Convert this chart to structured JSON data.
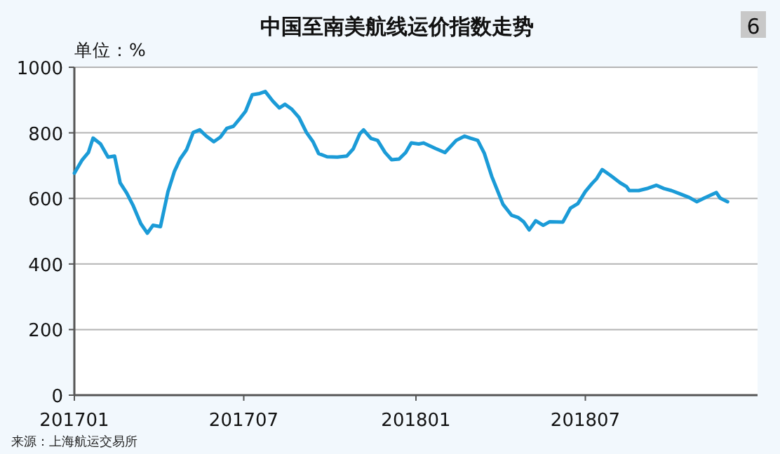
{
  "chart_data": {
    "type": "line",
    "title": "中国至南美航线运价指数走势",
    "ylabel": "单位：%",
    "annotations": [
      "6",
      "来源：上海航运交易所"
    ],
    "x": [
      "2017-01-01",
      "2017-01-09",
      "2017-01-16",
      "2017-01-21",
      "2017-01-29",
      "2017-02-06",
      "2017-02-13",
      "2017-02-19",
      "2017-02-26",
      "2017-03-05",
      "2017-03-13",
      "2017-03-20",
      "2017-03-26",
      "2017-04-03",
      "2017-04-11",
      "2017-04-18",
      "2017-04-24",
      "2017-05-01",
      "2017-05-08",
      "2017-05-15",
      "2017-05-22",
      "2017-05-30",
      "2017-06-06",
      "2017-06-13",
      "2017-06-20",
      "2017-06-27",
      "2017-07-03",
      "2017-07-10",
      "2017-07-18",
      "2017-07-24",
      "2017-08-01",
      "2017-08-08",
      "2017-08-14",
      "2017-08-21",
      "2017-08-29",
      "2017-09-06",
      "2017-09-13",
      "2017-09-19",
      "2017-09-28",
      "2017-10-09",
      "2017-10-19",
      "2017-10-26",
      "2017-11-02",
      "2017-11-06",
      "2017-11-14",
      "2017-11-21",
      "2017-11-29",
      "2017-12-06",
      "2017-12-14",
      "2017-12-21",
      "2017-12-27",
      "2018-01-04",
      "2018-01-09",
      "2018-01-22",
      "2018-02-01",
      "2018-02-13",
      "2018-02-22",
      "2018-02-28",
      "2018-03-08",
      "2018-03-15",
      "2018-03-23",
      "2018-04-04",
      "2018-04-13",
      "2018-04-20",
      "2018-04-26",
      "2018-05-02",
      "2018-05-09",
      "2018-05-17",
      "2018-05-24",
      "2018-06-07",
      "2018-06-15",
      "2018-06-23",
      "2018-07-01",
      "2018-07-08",
      "2018-07-13",
      "2018-07-19",
      "2018-07-28",
      "2018-08-07",
      "2018-08-14",
      "2018-08-17",
      "2018-08-27",
      "2018-09-06",
      "2018-09-15",
      "2018-09-23",
      "2018-10-01",
      "2018-10-11",
      "2018-10-20",
      "2018-10-28",
      "2018-11-05",
      "2018-11-18",
      "2018-11-22",
      "2018-11-30"
    ],
    "series": [
      {
        "color": "#1b9bd7",
        "values": [
          677,
          716,
          740,
          784,
          766,
          726,
          729,
          647,
          616,
          577,
          523,
          494,
          518,
          514,
          620,
          683,
          720,
          749,
          801,
          809,
          790,
          773,
          787,
          814,
          820,
          844,
          866,
          916,
          920,
          926,
          897,
          876,
          887,
          873,
          847,
          801,
          773,
          737,
          727,
          726,
          729,
          751,
          797,
          809,
          783,
          777,
          740,
          718,
          720,
          740,
          769,
          766,
          769,
          752,
          740,
          777,
          790,
          784,
          777,
          738,
          667,
          582,
          549,
          542,
          529,
          504,
          532,
          518,
          529,
          528,
          570,
          584,
          621,
          645,
          660,
          688,
          670,
          648,
          636,
          624,
          624,
          631,
          640,
          630,
          624,
          613,
          603,
          590,
          601,
          618,
          601,
          590
        ]
      }
    ],
    "xlim": [
      "2017-01-01",
      "2019-01-01"
    ],
    "xticks": [
      {
        "value": "2017-01",
        "label": "201701"
      },
      {
        "value": "2017-07",
        "label": "201707"
      },
      {
        "value": "2018-01",
        "label": "201801"
      },
      {
        "value": "2018-07",
        "label": "201807"
      }
    ],
    "ylim": [
      0,
      1000
    ],
    "yticks": [
      0,
      200,
      400,
      600,
      800,
      1000
    ],
    "grid": "y",
    "marker": "none",
    "line_style": "solid"
  }
}
